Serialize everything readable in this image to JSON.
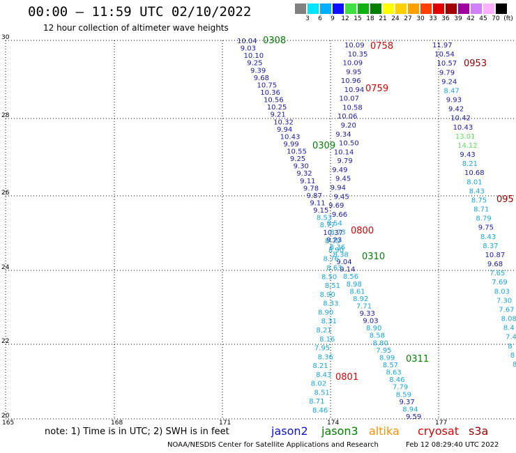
{
  "header": {
    "title": "00:00 – 11:59 UTC 02/10/2022",
    "subtitle": "12 hour collection of altimeter wave heights"
  },
  "color_scale": {
    "unit_label": "(ft)",
    "ticks": [
      "3",
      "6",
      "9",
      "12",
      "15",
      "18",
      "21",
      "24",
      "27",
      "30",
      "33",
      "36",
      "39",
      "42",
      "45",
      "70"
    ],
    "colors": [
      "#808080",
      "#00e5ff",
      "#00b0ff",
      "#1010ff",
      "#40e040",
      "#10b010",
      "#008000",
      "#ffff00",
      "#ffd000",
      "#ffa000",
      "#ff4000",
      "#e00000",
      "#a00000",
      "#a000a0",
      "#d080ff",
      "#ffb0ff",
      "#000000"
    ]
  },
  "map": {
    "lat_labels": [
      "30",
      "28",
      "26",
      "24",
      "22",
      "20"
    ],
    "lon_labels": [
      "165",
      "168",
      "171",
      "174",
      "177"
    ]
  },
  "labels": {
    "value_colors": {
      "dark": "#1a1aa8",
      "light": "#18a8e0",
      "green": "#60e060"
    },
    "time_colors": {
      "green": "#008000",
      "red": "#e00000",
      "darkred": "#a00000"
    }
  },
  "chart_data": {
    "type": "scatter",
    "tracks": [
      {
        "name": "track-left",
        "passes": [
          {
            "time": "0308",
            "satellite": "jason3"
          },
          {
            "time": "0309",
            "satellite": "jason3"
          },
          {
            "time": "0310",
            "satellite": "jason3"
          },
          {
            "time": "0311",
            "satellite": "jason3"
          }
        ],
        "values": [
          "10.04",
          "9.03",
          "10.10",
          "9.25",
          "9.39",
          "9.68",
          "10.75",
          "10.36",
          "10.56",
          "10.25",
          "9.21",
          "10.32",
          "9.94",
          "10.43",
          "9.99",
          "10.55",
          "9.25",
          "9.30",
          "9.32",
          "9.11",
          "9.78",
          "9.87",
          "9.11",
          "9.15",
          "8.53",
          "8.77",
          "10.37",
          "9.23",
          "8.36",
          "8.38",
          "9.04",
          "9.14",
          "8.56",
          "8.98",
          "8.61",
          "8.92",
          "7.71",
          "9.33",
          "9.03",
          "8.90",
          "8.58",
          "8.80",
          "7.95",
          "8.99",
          "8.57",
          "8.63",
          "8.46",
          "7.79",
          "8.59",
          "9.37",
          "8.94",
          "9.59"
        ]
      },
      {
        "name": "track-middle",
        "passes": [
          {
            "time": "0758",
            "satellite": "cryosat"
          },
          {
            "time": "0759",
            "satellite": "cryosat"
          },
          {
            "time": "0800",
            "satellite": "cryosat"
          },
          {
            "time": "0801",
            "satellite": "cryosat"
          }
        ],
        "values": [
          "10.09",
          "10.35",
          "10.09",
          "9.95",
          "10.96",
          "10.94",
          "10.07",
          "10.58",
          "10.06",
          "9.20",
          "9.34",
          "10.50",
          "10.14",
          "9.79",
          "9.49",
          "9.45",
          "9.94",
          "9.45",
          "9.69",
          "9.66",
          "8.54",
          "8.73",
          "8.79",
          "8.90",
          "8.76",
          "8.63",
          "8.50",
          "8.51",
          "8.90",
          "8.33",
          "8.90",
          "8.31",
          "8.21",
          "8.16",
          "7.95",
          "8.36",
          "8.21",
          "8.43",
          "8.02",
          "8.51",
          "8.71",
          "8.46"
        ]
      },
      {
        "name": "track-right",
        "passes": [
          {
            "time": "0953",
            "satellite": "s3a"
          },
          {
            "time": "095",
            "satellite": "s3a"
          }
        ],
        "values": [
          "11.97",
          "10.54",
          "10.57",
          "9.79",
          "9.24",
          "8.47",
          "9.93",
          "9.42",
          "10.42",
          "10.43",
          "13.01",
          "14.12",
          "9.43",
          "8.21",
          "10.68",
          "8.01",
          "8.43",
          "8.75",
          "8.71",
          "8.79",
          "9.75",
          "8.43",
          "8.37",
          "10.87",
          "9.68",
          "7.65",
          "7.69",
          "8.03",
          "7.30",
          "7.67",
          "8.08",
          "8.4",
          "7.4",
          "8",
          "8",
          "8"
        ]
      }
    ]
  },
  "notes": {
    "text": "note:  1) Time is in UTC;  2) SWH is in feet"
  },
  "legend": {
    "items": [
      {
        "label": "jason2",
        "color": "#1010e0"
      },
      {
        "label": "jason3",
        "color": "#008000"
      },
      {
        "label": "altika",
        "color": "#ff9000"
      },
      {
        "label": "cryosat",
        "color": "#e00000"
      },
      {
        "label": "s3a",
        "color": "#a00000"
      }
    ]
  },
  "footer": {
    "source": "NOAA/NESDIS Center for Satellite Applications and Research",
    "timestamp": "Feb 12 08:29:40 UTC 2022"
  }
}
